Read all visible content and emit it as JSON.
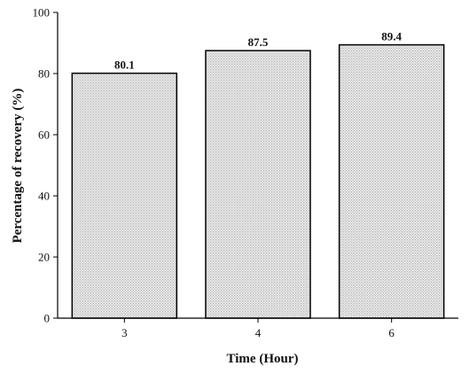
{
  "chart_data": {
    "type": "bar",
    "categories": [
      "3",
      "4",
      "6"
    ],
    "values": [
      80.1,
      87.5,
      89.4
    ],
    "data_labels": [
      "80.1",
      "87.5",
      "89.4"
    ],
    "xlabel": "Time (Hour)",
    "ylabel": "Percentage of recovery (%)",
    "ylim": [
      0,
      100
    ],
    "yticks": [
      0,
      20,
      40,
      60,
      80,
      100
    ],
    "ytick_labels": [
      "0",
      "20",
      "40",
      "60",
      "80",
      "100"
    ],
    "grid": false,
    "legend": "none",
    "bar_fill": "#e4e4e4",
    "bar_pattern_color": "#b8b8b8",
    "bar_stroke": "#000000"
  }
}
